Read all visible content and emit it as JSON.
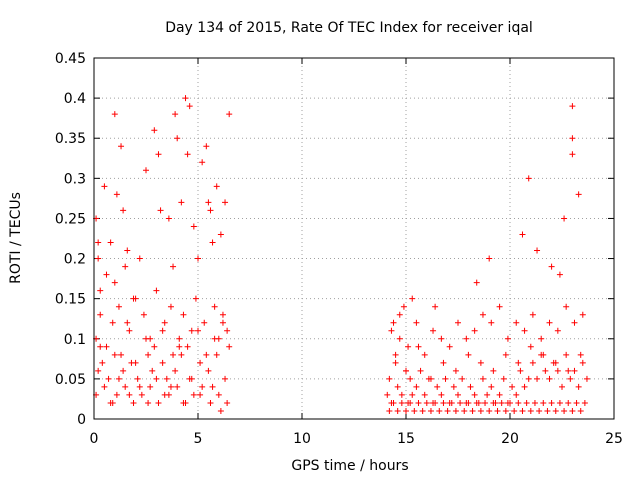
{
  "chart_data": {
    "type": "scatter",
    "title": "Day 134 of 2015, Rate Of TEC Index for receiver iqal",
    "xlabel": "GPS time / hours",
    "ylabel": "ROTI / TECUs",
    "xlim": [
      0,
      25
    ],
    "ylim": [
      0,
      0.45
    ],
    "xticks": [
      "0",
      "5",
      "10",
      "15",
      "20",
      "25"
    ],
    "yticks": [
      "0",
      "0.05",
      "0.1",
      "0.15",
      "0.2",
      "0.25",
      "0.3",
      "0.35",
      "0.4",
      "0.45"
    ],
    "grid": true,
    "marker": "+",
    "color": "#ff0000",
    "series": [
      {
        "name": "ROTI",
        "x": [
          0.1,
          0.2,
          0.3,
          0.5,
          0.8,
          1.0,
          1.1,
          1.3,
          1.4,
          1.5,
          1.6,
          1.9,
          2.2,
          2.5,
          2.9,
          3.1,
          3.2,
          3.6,
          3.8,
          3.9,
          4.0,
          4.2,
          4.4,
          4.5,
          4.6,
          4.8,
          5.0,
          5.2,
          5.4,
          5.5,
          5.6,
          5.7,
          5.9,
          6.1,
          6.3,
          6.5,
          0.1,
          0.3,
          0.6,
          0.9,
          1.2,
          1.7,
          2.0,
          2.4,
          2.7,
          3.0,
          3.4,
          3.7,
          4.1,
          4.3,
          4.7,
          4.9,
          5.3,
          5.8,
          6.0,
          6.2,
          6.4,
          0.2,
          0.4,
          0.7,
          1.0,
          1.4,
          1.8,
          2.1,
          2.6,
          2.8,
          3.3,
          3.5,
          3.9,
          4.2,
          4.6,
          5.1,
          5.5,
          5.9,
          6.3,
          0.1,
          0.5,
          0.8,
          1.1,
          1.5,
          1.9,
          2.3,
          2.7,
          3.1,
          3.6,
          4.0,
          4.4,
          4.8,
          5.2,
          5.6,
          6.0,
          6.4,
          0.3,
          0.6,
          1.0,
          1.3,
          1.6,
          2.0,
          2.5,
          2.9,
          3.3,
          3.8,
          4.1,
          4.5,
          5.0,
          5.4,
          5.8,
          6.2,
          6.5,
          0.2,
          0.9,
          1.2,
          1.7,
          2.2,
          2.6,
          3.0,
          3.4,
          3.7,
          4.3,
          4.7,
          5.1,
          5.7,
          6.1,
          14.1,
          14.2,
          14.3,
          14.4,
          14.5,
          14.6,
          14.7,
          14.8,
          14.9,
          15.0,
          15.1,
          15.2,
          15.3,
          15.5,
          15.7,
          15.9,
          16.1,
          16.3,
          16.5,
          16.7,
          16.9,
          17.1,
          17.3,
          17.5,
          17.7,
          17.9,
          18.1,
          18.3,
          18.5,
          18.7,
          18.9,
          19.1,
          19.3,
          19.5,
          19.7,
          19.9,
          20.1,
          20.3,
          20.5,
          20.7,
          20.9,
          21.1,
          21.3,
          21.5,
          21.7,
          21.9,
          22.1,
          22.3,
          22.5,
          22.7,
          22.9,
          23.1,
          23.3,
          23.5,
          23.7,
          14.2,
          14.4,
          14.6,
          14.8,
          15.0,
          15.2,
          15.4,
          15.6,
          15.8,
          16.0,
          16.2,
          16.4,
          16.6,
          16.8,
          17.0,
          17.2,
          17.4,
          17.6,
          17.8,
          18.0,
          18.2,
          18.4,
          18.6,
          18.8,
          19.0,
          19.2,
          19.4,
          19.6,
          19.8,
          20.0,
          20.2,
          20.4,
          20.6,
          20.8,
          21.0,
          21.2,
          21.4,
          21.6,
          21.8,
          22.0,
          22.2,
          22.4,
          22.6,
          22.8,
          23.0,
          23.2,
          23.4,
          23.6,
          14.3,
          14.7,
          15.1,
          15.5,
          15.9,
          16.3,
          16.7,
          17.1,
          17.5,
          17.9,
          18.3,
          18.7,
          19.1,
          19.5,
          19.9,
          20.3,
          20.7,
          21.1,
          21.5,
          21.9,
          22.3,
          22.7,
          23.1,
          23.5,
          14.5,
          15.0,
          15.6,
          16.2,
          16.8,
          17.4,
          18.0,
          18.6,
          19.2,
          19.8,
          20.4,
          21.0,
          21.6,
          22.2,
          22.8,
          23.4,
          15.3,
          16.4,
          18.4,
          19.0,
          20.6,
          21.3,
          22.0,
          22.6,
          23.0,
          23.3,
          20.9,
          22.4,
          23.0,
          23.0
        ],
        "y": [
          0.25,
          0.2,
          0.16,
          0.29,
          0.22,
          0.38,
          0.28,
          0.34,
          0.26,
          0.19,
          0.21,
          0.15,
          0.2,
          0.31,
          0.36,
          0.33,
          0.26,
          0.25,
          0.19,
          0.38,
          0.35,
          0.27,
          0.4,
          0.33,
          0.39,
          0.24,
          0.2,
          0.32,
          0.34,
          0.27,
          0.26,
          0.22,
          0.29,
          0.23,
          0.27,
          0.38,
          0.1,
          0.13,
          0.09,
          0.12,
          0.14,
          0.11,
          0.15,
          0.13,
          0.1,
          0.16,
          0.12,
          0.14,
          0.09,
          0.13,
          0.11,
          0.15,
          0.12,
          0.14,
          0.1,
          0.13,
          0.11,
          0.06,
          0.07,
          0.05,
          0.08,
          0.06,
          0.07,
          0.05,
          0.08,
          0.06,
          0.07,
          0.05,
          0.06,
          0.08,
          0.05,
          0.07,
          0.06,
          0.08,
          0.05,
          0.03,
          0.04,
          0.02,
          0.03,
          0.04,
          0.02,
          0.03,
          0.04,
          0.02,
          0.03,
          0.04,
          0.02,
          0.03,
          0.04,
          0.02,
          0.03,
          0.02,
          0.09,
          0.18,
          0.17,
          0.08,
          0.12,
          0.07,
          0.1,
          0.09,
          0.11,
          0.08,
          0.1,
          0.09,
          0.11,
          0.08,
          0.1,
          0.12,
          0.09,
          0.22,
          0.02,
          0.05,
          0.03,
          0.04,
          0.02,
          0.05,
          0.03,
          0.04,
          0.02,
          0.05,
          0.03,
          0.04,
          0.01,
          0.03,
          0.05,
          0.02,
          0.12,
          0.08,
          0.04,
          0.1,
          0.03,
          0.14,
          0.06,
          0.02,
          0.05,
          0.03,
          0.04,
          0.06,
          0.03,
          0.05,
          0.02,
          0.04,
          0.03,
          0.05,
          0.02,
          0.04,
          0.03,
          0.05,
          0.02,
          0.04,
          0.03,
          0.02,
          0.05,
          0.03,
          0.04,
          0.02,
          0.03,
          0.05,
          0.02,
          0.04,
          0.03,
          0.06,
          0.04,
          0.05,
          0.07,
          0.05,
          0.08,
          0.06,
          0.05,
          0.07,
          0.06,
          0.04,
          0.08,
          0.05,
          0.06,
          0.04,
          0.07,
          0.05,
          0.01,
          0.02,
          0.01,
          0.02,
          0.01,
          0.02,
          0.01,
          0.02,
          0.01,
          0.02,
          0.01,
          0.02,
          0.01,
          0.02,
          0.01,
          0.02,
          0.01,
          0.02,
          0.01,
          0.02,
          0.01,
          0.02,
          0.01,
          0.02,
          0.01,
          0.02,
          0.01,
          0.02,
          0.01,
          0.02,
          0.01,
          0.02,
          0.01,
          0.02,
          0.01,
          0.02,
          0.01,
          0.02,
          0.01,
          0.02,
          0.01,
          0.02,
          0.01,
          0.02,
          0.01,
          0.02,
          0.01,
          0.02,
          0.11,
          0.13,
          0.09,
          0.12,
          0.08,
          0.11,
          0.1,
          0.09,
          0.12,
          0.1,
          0.11,
          0.13,
          0.12,
          0.14,
          0.1,
          0.12,
          0.11,
          0.13,
          0.1,
          0.12,
          0.11,
          0.14,
          0.12,
          0.13,
          0.07,
          0.06,
          0.09,
          0.05,
          0.07,
          0.06,
          0.08,
          0.07,
          0.06,
          0.08,
          0.07,
          0.09,
          0.08,
          0.07,
          0.06,
          0.08,
          0.15,
          0.14,
          0.17,
          0.2,
          0.23,
          0.21,
          0.19,
          0.25,
          0.39,
          0.28,
          0.3,
          0.18,
          0.33,
          0.35
        ]
      }
    ]
  }
}
